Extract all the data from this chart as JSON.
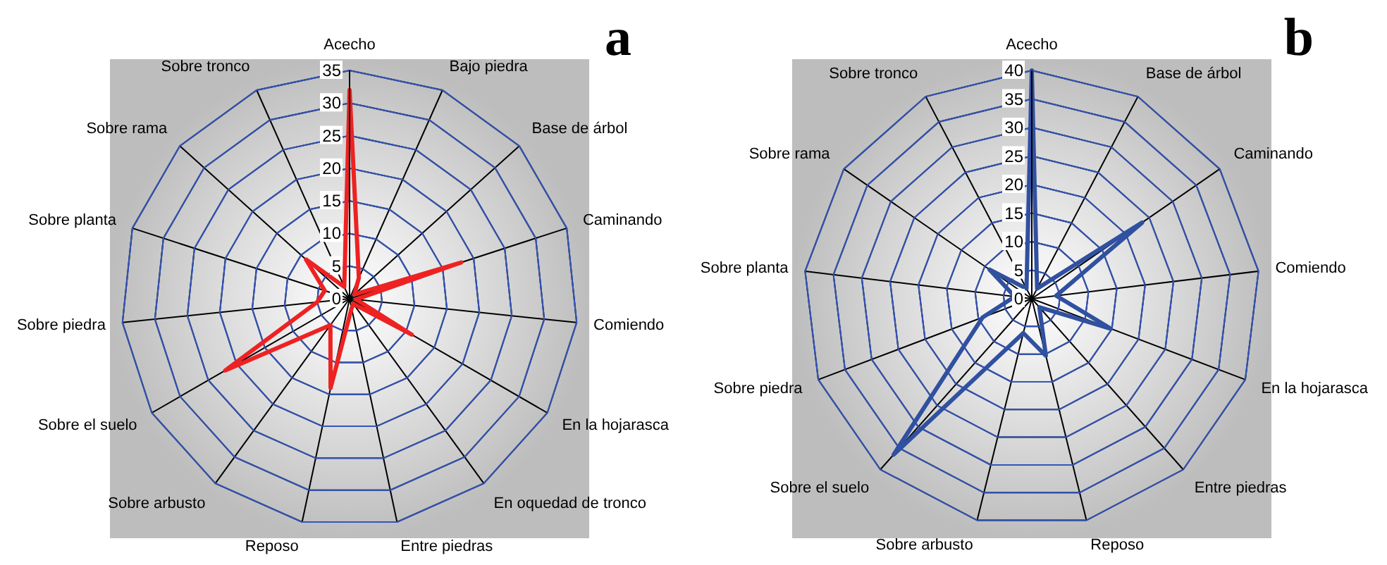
{
  "chart_data": [
    {
      "type": "radar",
      "title": "a",
      "categories": [
        "Acecho",
        "Bajo piedra",
        "Base de árbol",
        "Caminando",
        "Comiendo",
        "En la hojarasca",
        "En oquedad de tronco",
        "Entre piedras",
        "Reposo",
        "Sobre arbusto",
        "Sobre el suelo",
        "Sobre piedra",
        "Sobre planta",
        "Sobre rama",
        "Sobre tronco"
      ],
      "series": [
        {
          "color": "#ee2222",
          "values": [
            32,
            3.5,
            1,
            18,
            1,
            11,
            1,
            1.5,
            14,
            5,
            22,
            5,
            4,
            9,
            2
          ]
        }
      ],
      "ylim": [
        0,
        35
      ],
      "yticks": [
        0,
        5,
        10,
        15,
        20,
        25,
        30,
        35
      ],
      "grid": true,
      "legend": false
    },
    {
      "type": "radar",
      "title": "b",
      "categories": [
        "Acecho",
        "Base de árbol",
        "Caminando",
        "Comiendo",
        "En la hojarasca",
        "Entre piedras",
        "Reposo",
        "Sobre arbusto",
        "Sobre el suelo",
        "Sobre piedra",
        "Sobre planta",
        "Sobre rama",
        "Sobre tronco"
      ],
      "series": [
        {
          "color": "#3050a0",
          "values": [
            40,
            2,
            23.5,
            4.3,
            14.8,
            2,
            10.3,
            6.2,
            36.5,
            9.2,
            3,
            9,
            2
          ]
        }
      ],
      "ylim": [
        0,
        40
      ],
      "yticks": [
        0,
        5,
        10,
        15,
        20,
        25,
        30,
        35,
        40
      ],
      "grid": true,
      "legend": false
    }
  ]
}
